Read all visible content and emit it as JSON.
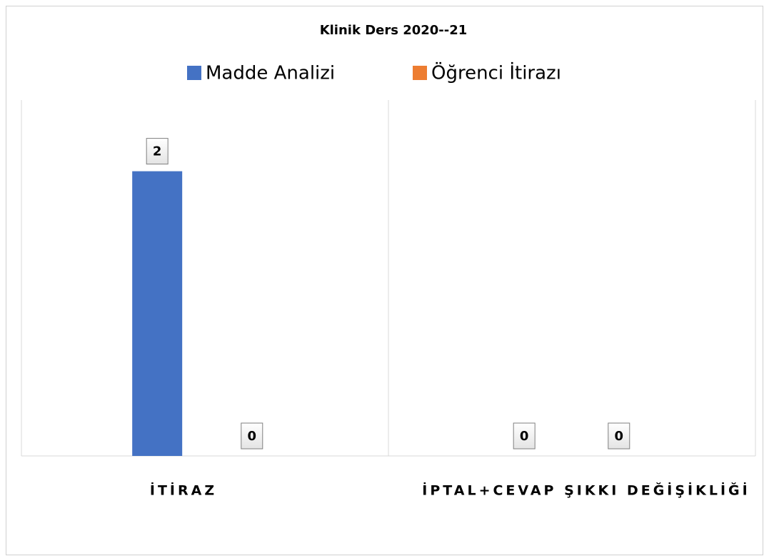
{
  "chart_data": {
    "type": "bar",
    "title": "Klinik Ders 2020--21",
    "categories": [
      "İTİRAZ",
      "İPTAL+CEVAP ŞIKKI DEĞİŞİKLİĞİ"
    ],
    "series": [
      {
        "name": "Madde Analizi",
        "color": "#4472c4",
        "values": [
          2,
          0
        ]
      },
      {
        "name": "Öğrenci İtirazı",
        "color": "#ed7d31",
        "values": [
          0,
          0
        ]
      }
    ],
    "ylim": [
      0,
      2.5
    ],
    "legend": "top"
  }
}
